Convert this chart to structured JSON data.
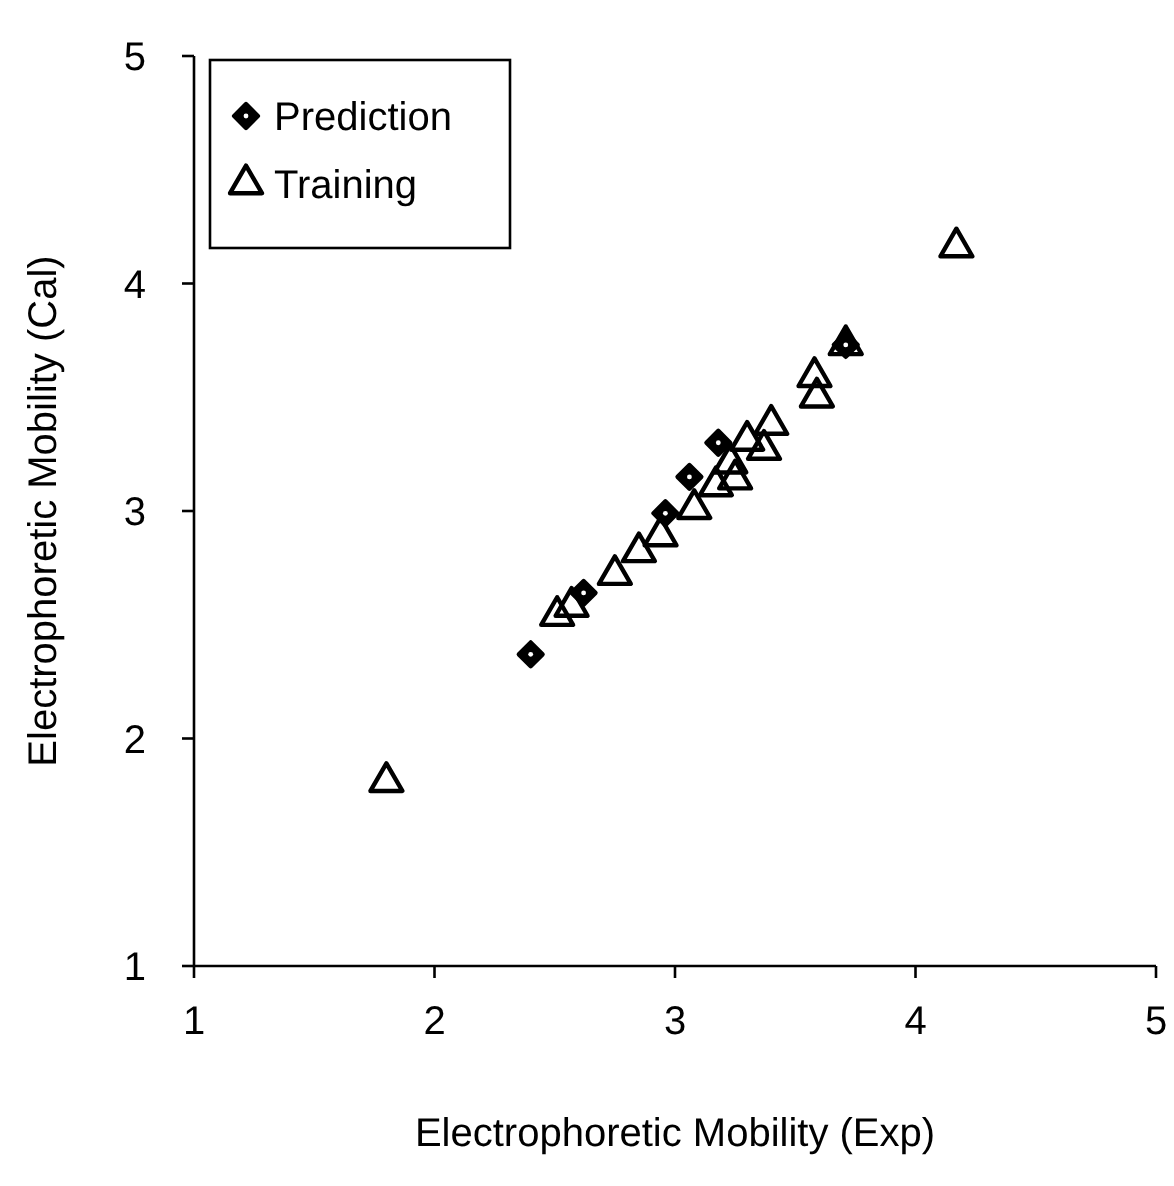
{
  "chart_data": {
    "type": "scatter",
    "xlabel": "Electrophoretic Mobility (Exp)",
    "ylabel": "Electrophoretic Mobility (Cal)",
    "xlim": [
      1,
      5
    ],
    "ylim": [
      1,
      5
    ],
    "xticks": [
      1,
      2,
      3,
      4,
      5
    ],
    "yticks": [
      1,
      2,
      3,
      4,
      5
    ],
    "grid": false,
    "legend": "top left",
    "series": [
      {
        "name": "Prediction",
        "color": "#000000",
        "marker": "diamond",
        "x": [
          2.4,
          2.62,
          2.96,
          3.06,
          3.18,
          3.71
        ],
        "values": [
          2.37,
          2.64,
          2.99,
          3.15,
          3.3,
          3.73
        ]
      },
      {
        "name": "Training",
        "color": "#000000",
        "marker": "triangle",
        "x": [
          1.8,
          2.51,
          2.57,
          2.75,
          2.85,
          2.94,
          3.08,
          3.17,
          3.25,
          3.23,
          3.3,
          3.37,
          3.4,
          3.58,
          3.59,
          3.71,
          4.17
        ],
        "values": [
          1.81,
          2.54,
          2.58,
          2.72,
          2.82,
          2.89,
          3.01,
          3.11,
          3.14,
          3.21,
          3.31,
          3.27,
          3.38,
          3.59,
          3.5,
          3.73,
          4.16
        ]
      }
    ]
  }
}
